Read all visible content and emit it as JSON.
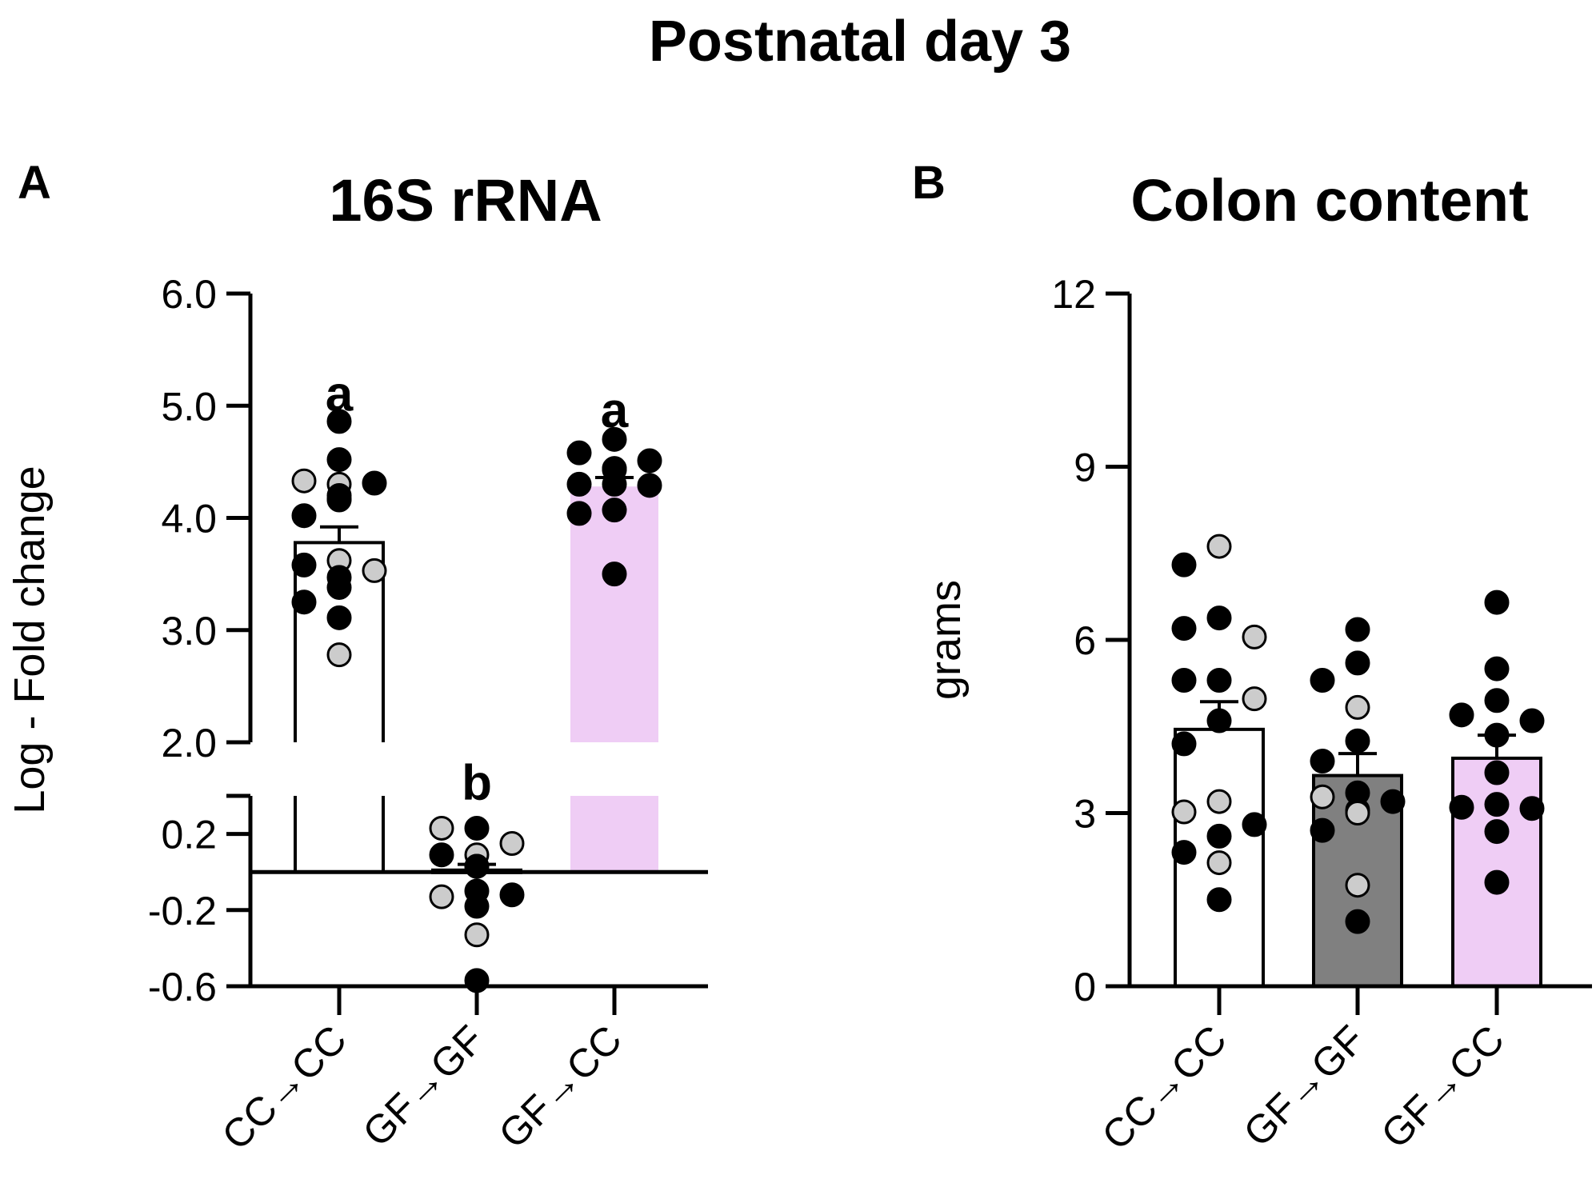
{
  "figure_title": "Postnatal day 3",
  "colors": {
    "axis": "#000000",
    "bar_cc_cc": "#ffffff",
    "bar_gf_gf": "#808080",
    "bar_gf_cc": "#efcdf5",
    "point_black": "#000000",
    "point_gray": "#cccccc"
  },
  "chart_data": [
    {
      "panel": "A",
      "type": "bar",
      "title": "16S rRNA",
      "xlabel": "",
      "ylabel": "Log - Fold change",
      "categories": [
        "CC→CC",
        "GF→GF",
        "GF→CC"
      ],
      "y_axis_break": true,
      "lower_segment": {
        "ylim": [
          -0.6,
          0.4
        ],
        "ticks": [
          -0.6,
          -0.2,
          0.2
        ]
      },
      "upper_segment": {
        "ylim": [
          2.0,
          6.0
        ],
        "ticks": [
          2.0,
          3.0,
          4.0,
          5.0,
          6.0
        ]
      },
      "tick_labels": [
        "-0.6",
        "-0.2",
        "0.2",
        "2.0",
        "3.0",
        "4.0",
        "5.0",
        "6.0"
      ],
      "baseline": 0,
      "values": [
        3.78,
        0.01,
        4.28
      ],
      "sem": [
        0.14,
        0.03,
        0.08
      ],
      "significance_letters": [
        "a",
        "b",
        "a"
      ],
      "points": [
        [
          {
            "y": 4.86,
            "c": "black"
          },
          {
            "y": 4.52,
            "c": "black"
          },
          {
            "y": 4.33,
            "c": "gray"
          },
          {
            "y": 4.31,
            "c": "black"
          },
          {
            "y": 4.3,
            "c": "gray"
          },
          {
            "y": 4.2,
            "c": "black"
          },
          {
            "y": 4.17,
            "c": "black"
          },
          {
            "y": 4.16,
            "c": "black"
          },
          {
            "y": 4.02,
            "c": "black"
          },
          {
            "y": 3.62,
            "c": "gray"
          },
          {
            "y": 3.58,
            "c": "black"
          },
          {
            "y": 3.53,
            "c": "gray"
          },
          {
            "y": 3.47,
            "c": "black"
          },
          {
            "y": 3.38,
            "c": "black"
          },
          {
            "y": 3.25,
            "c": "black"
          },
          {
            "y": 3.11,
            "c": "black"
          },
          {
            "y": 2.78,
            "c": "gray"
          }
        ],
        [
          {
            "y": 0.23,
            "c": "black"
          },
          {
            "y": 0.23,
            "c": "gray"
          },
          {
            "y": 0.15,
            "c": "gray"
          },
          {
            "y": 0.09,
            "c": "gray"
          },
          {
            "y": 0.09,
            "c": "black"
          },
          {
            "y": 0.03,
            "c": "black"
          },
          {
            "y": 0.03,
            "c": "black"
          },
          {
            "y": -0.1,
            "c": "black"
          },
          {
            "y": -0.13,
            "c": "gray"
          },
          {
            "y": -0.12,
            "c": "black"
          },
          {
            "y": -0.18,
            "c": "black"
          },
          {
            "y": -0.33,
            "c": "gray"
          },
          {
            "y": -0.57,
            "c": "black"
          }
        ],
        [
          {
            "y": 4.7,
            "c": "black"
          },
          {
            "y": 4.58,
            "c": "black"
          },
          {
            "y": 4.51,
            "c": "black"
          },
          {
            "y": 4.44,
            "c": "black"
          },
          {
            "y": 4.44,
            "c": "black"
          },
          {
            "y": 4.43,
            "c": "black"
          },
          {
            "y": 4.3,
            "c": "black"
          },
          {
            "y": 4.3,
            "c": "black"
          },
          {
            "y": 4.29,
            "c": "black"
          },
          {
            "y": 4.07,
            "c": "black"
          },
          {
            "y": 4.04,
            "c": "black"
          },
          {
            "y": 3.5,
            "c": "black"
          }
        ]
      ]
    },
    {
      "panel": "B",
      "type": "bar",
      "title": "Colon content",
      "xlabel": "",
      "ylabel": "grams",
      "categories": [
        "CC→CC",
        "GF→GF",
        "GF→CC"
      ],
      "ylim": [
        0,
        12
      ],
      "ticks": [
        0,
        3,
        6,
        9,
        12
      ],
      "tick_labels": [
        "0",
        "3",
        "6",
        "9",
        "12"
      ],
      "values": [
        4.45,
        3.65,
        3.95
      ],
      "sem": [
        0.48,
        0.38,
        0.4
      ],
      "points": [
        [
          {
            "y": 7.62,
            "c": "gray"
          },
          {
            "y": 7.3,
            "c": "black"
          },
          {
            "y": 6.38,
            "c": "black"
          },
          {
            "y": 6.2,
            "c": "black"
          },
          {
            "y": 6.05,
            "c": "gray"
          },
          {
            "y": 5.3,
            "c": "black"
          },
          {
            "y": 5.3,
            "c": "black"
          },
          {
            "y": 4.98,
            "c": "gray"
          },
          {
            "y": 4.6,
            "c": "black"
          },
          {
            "y": 4.2,
            "c": "black"
          },
          {
            "y": 3.2,
            "c": "gray"
          },
          {
            "y": 3.02,
            "c": "gray"
          },
          {
            "y": 2.8,
            "c": "black"
          },
          {
            "y": 2.6,
            "c": "black"
          },
          {
            "y": 2.32,
            "c": "black"
          },
          {
            "y": 2.14,
            "c": "gray"
          },
          {
            "y": 1.5,
            "c": "black"
          }
        ],
        [
          {
            "y": 6.18,
            "c": "black"
          },
          {
            "y": 5.6,
            "c": "black"
          },
          {
            "y": 5.3,
            "c": "black"
          },
          {
            "y": 4.83,
            "c": "gray"
          },
          {
            "y": 4.25,
            "c": "black"
          },
          {
            "y": 3.9,
            "c": "black"
          },
          {
            "y": 3.35,
            "c": "black"
          },
          {
            "y": 3.28,
            "c": "gray"
          },
          {
            "y": 3.2,
            "c": "black"
          },
          {
            "y": 3.05,
            "c": "black"
          },
          {
            "y": 3.0,
            "c": "gray"
          },
          {
            "y": 2.7,
            "c": "black"
          },
          {
            "y": 1.75,
            "c": "gray"
          },
          {
            "y": 1.12,
            "c": "black"
          }
        ],
        [
          {
            "y": 6.65,
            "c": "black"
          },
          {
            "y": 5.5,
            "c": "black"
          },
          {
            "y": 4.95,
            "c": "black"
          },
          {
            "y": 4.7,
            "c": "black"
          },
          {
            "y": 4.6,
            "c": "black"
          },
          {
            "y": 4.35,
            "c": "black"
          },
          {
            "y": 3.7,
            "c": "black"
          },
          {
            "y": 3.15,
            "c": "black"
          },
          {
            "y": 3.1,
            "c": "black"
          },
          {
            "y": 3.08,
            "c": "black"
          },
          {
            "y": 2.68,
            "c": "black"
          },
          {
            "y": 1.8,
            "c": "black"
          }
        ]
      ]
    }
  ]
}
